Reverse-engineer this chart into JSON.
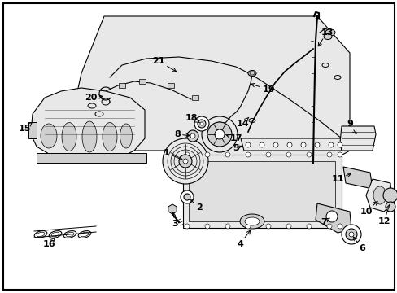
{
  "background_color": "#ffffff",
  "border_color": "#000000",
  "fig_width": 4.89,
  "fig_height": 3.6,
  "dpi": 100,
  "line_color": "#000000",
  "fill_light": "#e8e8e8",
  "fill_mid": "#d0d0d0",
  "label_fontsize": 8,
  "label_fontweight": "bold"
}
